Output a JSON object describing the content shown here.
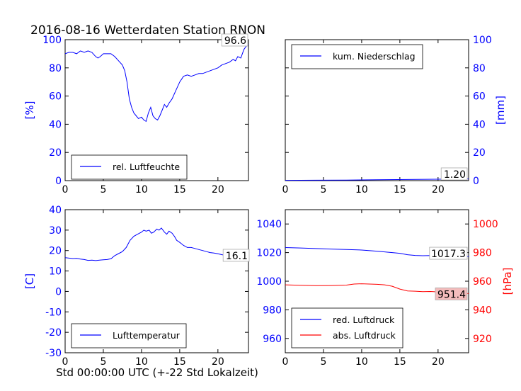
{
  "figure": {
    "title": "2016-08-16 Wetterdaten Station RNON",
    "xlabel": "Std 00:00:00 UTC (+-22 Std Lokalzeit)"
  },
  "colors": {
    "primary": "#0000ff",
    "secondary": "#ff0000",
    "value_box": "#ffffff",
    "value_box_red": "#f4bcbc"
  },
  "chart_data": [
    {
      "type": "line",
      "panel": "top-left",
      "ylabel": "[%]",
      "xlim": [
        0,
        24
      ],
      "ylim": [
        0,
        100
      ],
      "xticks": [
        0,
        5,
        10,
        15,
        20
      ],
      "yticks": [
        0,
        20,
        40,
        60,
        80,
        100
      ],
      "legend_loc": "lower-center",
      "current_value_label": "96.6",
      "series": [
        {
          "name": "rel. Luftfeuchte",
          "color": "#0000ff",
          "x": [
            0,
            0.5,
            1,
            1.5,
            2,
            2.5,
            3,
            3.5,
            4,
            4.3,
            4.6,
            5,
            5.5,
            6,
            6.5,
            7,
            7.5,
            7.8,
            8.1,
            8.4,
            8.7,
            9,
            9.3,
            9.6,
            10,
            10.3,
            10.6,
            10.9,
            11.2,
            11.5,
            11.8,
            12.1,
            12.4,
            12.7,
            13,
            13.3,
            13.6,
            14,
            14.5,
            15,
            15.5,
            16,
            16.5,
            17,
            17.5,
            18,
            18.5,
            19,
            19.5,
            20,
            20.5,
            21,
            21.5,
            22,
            22.3,
            22.6,
            23,
            23.4,
            23.8,
            24
          ],
          "y": [
            90,
            91,
            91,
            90,
            92,
            91,
            92,
            91,
            88,
            87,
            88,
            90,
            90,
            90,
            88,
            85,
            82,
            78,
            70,
            58,
            52,
            48,
            46,
            44,
            45,
            43,
            42,
            48,
            52,
            46,
            44,
            43,
            46,
            50,
            54,
            52,
            55,
            58,
            64,
            70,
            74,
            75,
            74,
            75,
            76,
            76,
            77,
            78,
            79,
            80,
            82,
            83,
            84,
            86,
            85,
            88,
            87,
            93,
            96,
            96.6
          ]
        }
      ]
    },
    {
      "type": "line",
      "panel": "top-right",
      "ylabel": "[mm]",
      "xlim": [
        0,
        24
      ],
      "ylim": [
        0,
        100
      ],
      "xticks": [
        0,
        5,
        10,
        15,
        20
      ],
      "yticks": [
        0,
        20,
        40,
        60,
        80,
        100
      ],
      "legend_loc": "top-left",
      "current_value_label": "1.20",
      "series": [
        {
          "name": "kum. Niederschlag",
          "color": "#0000ff",
          "x": [
            0,
            4,
            8,
            12,
            16,
            20,
            24
          ],
          "y": [
            0.2,
            0.3,
            0.4,
            0.6,
            0.8,
            1.0,
            1.2
          ]
        }
      ]
    },
    {
      "type": "line",
      "panel": "bottom-left",
      "ylabel": "[C]",
      "xlim": [
        0,
        24
      ],
      "ylim": [
        -30,
        40
      ],
      "xticks": [
        0,
        5,
        10,
        15,
        20
      ],
      "yticks": [
        -30,
        -20,
        -10,
        0,
        10,
        20,
        30,
        40
      ],
      "legend_loc": "lower-center",
      "current_value_label": "16.1",
      "series": [
        {
          "name": "Lufttemperatur",
          "color": "#0000ff",
          "x": [
            0,
            0.5,
            1,
            1.5,
            2,
            2.5,
            3,
            3.5,
            4,
            4.5,
            5,
            5.5,
            6,
            6.5,
            7,
            7.5,
            8,
            8.5,
            9,
            9.5,
            10,
            10.3,
            10.6,
            11,
            11.3,
            11.6,
            12,
            12.3,
            12.6,
            13,
            13.3,
            13.6,
            14,
            14.3,
            14.6,
            15,
            15.5,
            16,
            16.5,
            17,
            17.5,
            18,
            18.5,
            19,
            19.5,
            20,
            20.5,
            21,
            21.5,
            22,
            22.5,
            23,
            23.5,
            24
          ],
          "y": [
            16.5,
            16.3,
            16.1,
            16.2,
            15.8,
            15.6,
            15.2,
            15.3,
            15.1,
            15.3,
            15.5,
            15.6,
            16,
            17.5,
            18.5,
            19.5,
            21.5,
            25,
            27,
            28,
            29,
            30,
            29.5,
            30,
            28.5,
            29,
            30.5,
            30,
            31,
            29,
            28,
            29.5,
            28.5,
            27,
            25,
            24,
            22.5,
            21.5,
            21.5,
            21,
            20.5,
            20,
            19.5,
            19,
            18.8,
            18.4,
            18,
            17.6,
            17.2,
            17,
            16.8,
            16.5,
            16.3,
            16.1
          ]
        }
      ]
    },
    {
      "type": "line",
      "panel": "bottom-right",
      "xlim": [
        0,
        24
      ],
      "ylim_left": [
        950,
        1050
      ],
      "ylim_right": [
        910,
        1010
      ],
      "ylabel_right": "[hPa]",
      "xticks": [
        0,
        5,
        10,
        15,
        20
      ],
      "yticks_left": [
        960,
        980,
        1000,
        1020,
        1040
      ],
      "yticks_right": [
        920,
        940,
        960,
        980,
        1000
      ],
      "legend_loc": "lower-left",
      "current_value_labels": [
        "1017.3",
        "951.4"
      ],
      "series": [
        {
          "name": "red. Luftdruck",
          "color": "#0000ff",
          "axis": "left",
          "x": [
            0,
            2,
            4,
            6,
            8,
            10,
            12,
            13,
            14,
            15,
            16,
            17,
            18,
            19,
            20,
            21,
            22,
            23,
            24
          ],
          "y": [
            1023.5,
            1023.2,
            1022.8,
            1022.5,
            1022.2,
            1021.8,
            1021.0,
            1020.5,
            1020.0,
            1019.5,
            1018.5,
            1018.0,
            1017.8,
            1017.9,
            1017.7,
            1017.6,
            1017.5,
            1017.4,
            1017.3
          ]
        },
        {
          "name": "abs. Luftdruck",
          "color": "#ff0000",
          "axis": "right",
          "x": [
            0,
            2,
            4,
            6,
            8,
            9,
            10,
            11,
            12,
            13,
            14,
            15,
            16,
            17,
            18,
            19,
            20,
            21,
            22,
            23,
            24
          ],
          "y": [
            957.5,
            957.2,
            956.9,
            957.0,
            957.3,
            958.0,
            958.2,
            958.0,
            957.8,
            957.5,
            956.5,
            954.5,
            953.2,
            953.0,
            952.7,
            952.8,
            952.5,
            952.2,
            951.9,
            951.6,
            951.4
          ]
        }
      ]
    }
  ]
}
